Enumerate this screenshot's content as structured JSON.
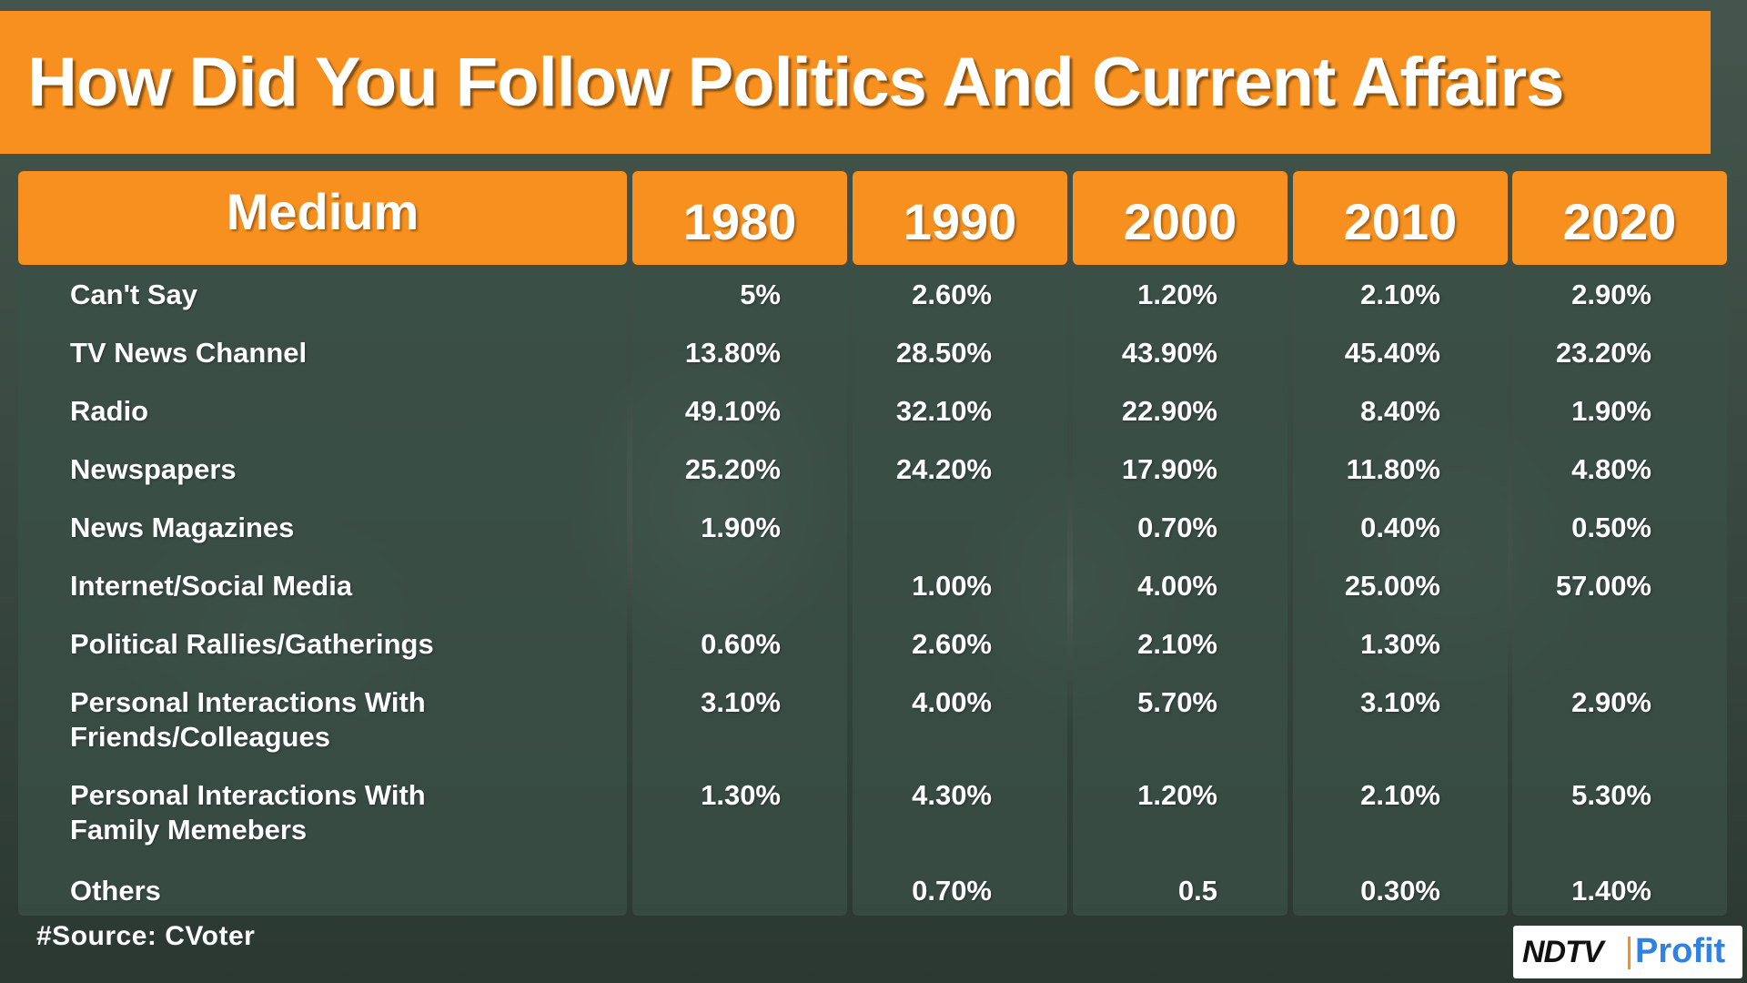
{
  "title": "How Did You Follow Politics And Current Affairs",
  "source": "#Source: CVoter",
  "logo": {
    "brand": "NDTV",
    "product": "Profit"
  },
  "colors": {
    "accent": "#f7901e",
    "panel": "#3a5046",
    "text": "#ffffff",
    "logo_blue": "#2e82e6"
  },
  "chart_data": {
    "type": "table",
    "title": "How Did You Follow Politics And Current Affairs",
    "columns": [
      "Medium",
      "1980",
      "1990",
      "2000",
      "2010",
      "2020"
    ],
    "rows": [
      {
        "medium": [
          "Can't Say"
        ],
        "values": [
          "5%",
          "2.60%",
          "1.20%",
          "2.10%",
          "2.90%"
        ]
      },
      {
        "medium": [
          "TV News Channel"
        ],
        "values": [
          "13.80%",
          "28.50%",
          "43.90%",
          "45.40%",
          "23.20%"
        ]
      },
      {
        "medium": [
          "Radio"
        ],
        "values": [
          "49.10%",
          "32.10%",
          "22.90%",
          "8.40%",
          "1.90%"
        ]
      },
      {
        "medium": [
          "Newspapers"
        ],
        "values": [
          "25.20%",
          "24.20%",
          "17.90%",
          "11.80%",
          "4.80%"
        ]
      },
      {
        "medium": [
          "News Magazines"
        ],
        "values": [
          "1.90%",
          "",
          "0.70%",
          "0.40%",
          "0.50%"
        ]
      },
      {
        "medium": [
          "Internet/Social Media"
        ],
        "values": [
          "",
          "1.00%",
          "4.00%",
          "25.00%",
          "57.00%"
        ]
      },
      {
        "medium": [
          "Political Rallies/Gatherings"
        ],
        "values": [
          "0.60%",
          "2.60%",
          "2.10%",
          "1.30%",
          ""
        ]
      },
      {
        "medium": [
          "Personal Interactions With",
          "Friends/Colleagues"
        ],
        "values": [
          "3.10%",
          "4.00%",
          "5.70%",
          "3.10%",
          "2.90%"
        ]
      },
      {
        "medium": [
          "Personal Interactions With",
          "Family Memebers"
        ],
        "values": [
          "1.30%",
          "4.30%",
          "1.20%",
          "2.10%",
          "5.30%"
        ]
      },
      {
        "medium": [
          "Others"
        ],
        "values": [
          "",
          "0.70%",
          "0.5",
          "0.30%",
          "1.40%"
        ]
      }
    ]
  }
}
